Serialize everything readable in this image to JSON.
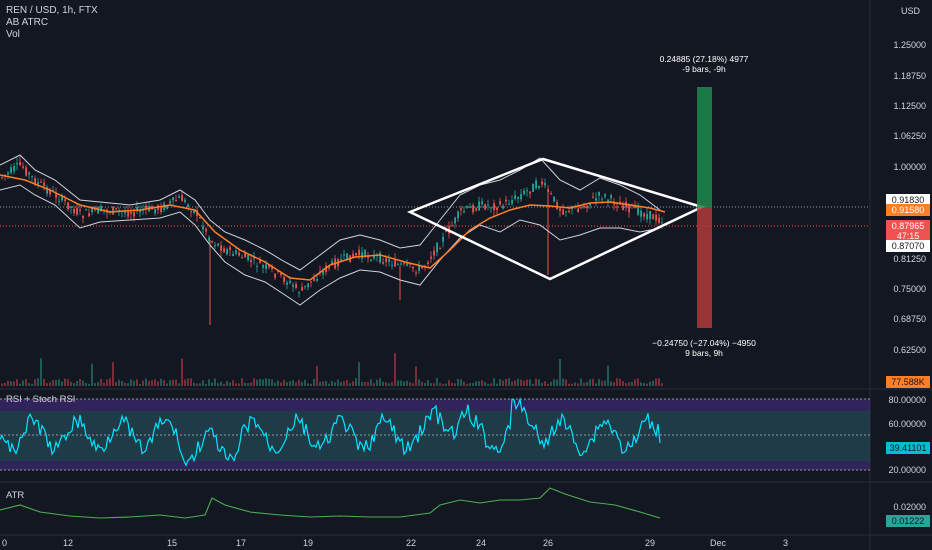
{
  "header": {
    "symbol_line": "REN / USD, 1h, FTX",
    "indicator1": "AB ATRC",
    "indicator2": "Vol",
    "currency": "USD"
  },
  "price_axis": {
    "labels": [
      "1.25000",
      "1.18750",
      "1.12500",
      "1.06250",
      "1.00000",
      "0.91830",
      "0.91580",
      "0.87965",
      "47:15",
      "0.87070",
      "0.81250",
      "0.75000",
      "0.68750",
      "0.62500"
    ],
    "tags": {
      "t1": "0.91830",
      "t2": "0.91580",
      "t3": "0.87965",
      "t3b": "47:15",
      "t4": "0.87070",
      "vol": "77.588K"
    }
  },
  "annotations": {
    "up_line1": "0.24885 (27.18%) 4977",
    "up_line2": "-9 bars, -9h",
    "down_line1": "−0.24750 (−27.04%) −4950",
    "down_line2": "9 bars, 9h"
  },
  "rsi_pane": {
    "title": "RSI + Stoch RSI",
    "labels": [
      "80.00000",
      "60.00000",
      "20.00000"
    ],
    "current": "39.41101"
  },
  "atr_pane": {
    "title": "ATR",
    "labels": [
      "0.02000"
    ],
    "current": "0.01222"
  },
  "time_axis": [
    "0",
    "12",
    "15",
    "17",
    "19",
    "22",
    "24",
    "26",
    "29",
    "Dec",
    "3"
  ],
  "colors": {
    "background": "#131722",
    "up": "#26a69a",
    "down": "#ef5350",
    "ema": "#ff7f27",
    "rsi": "#00e5ff",
    "atr": "#26a69a",
    "pattern": "#ffffff"
  }
}
